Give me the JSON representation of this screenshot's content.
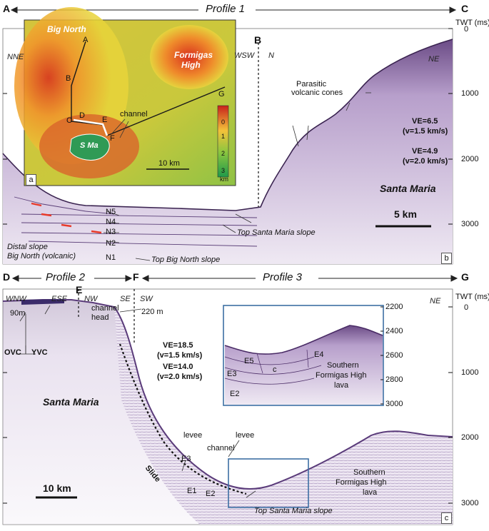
{
  "profiles": {
    "p1": {
      "title": "Profile 1",
      "start": "A",
      "end": "C",
      "mid": "B"
    },
    "p2": {
      "title": "Profile 2",
      "start": "D",
      "end": "F",
      "mid": "E"
    },
    "p3": {
      "title": "Profile 3",
      "start": "F",
      "end": "G"
    }
  },
  "panel_b": {
    "twt_label": "TWT (ms)",
    "twt_ticks": [
      "0",
      "1000",
      "2000",
      "3000"
    ],
    "directions": {
      "left": "NNE",
      "wsw": "WSW",
      "n": "N",
      "ne": "NE"
    },
    "ve": [
      "VE=6.5",
      "(v=1.5 km/s)",
      "VE=4.9",
      "(v=2.0 km/s)"
    ],
    "island": "Santa Maria",
    "scale": "5 km",
    "horizons": [
      "N5",
      "N4",
      "N3",
      "N2",
      "N1"
    ],
    "annotations": {
      "parasitic": "Parasitic",
      "cones": "volcanic cones",
      "top_sm": "Top Santa Maria slope",
      "top_bn": "Top Big North slope",
      "distal1": "Distal slope",
      "distal2": "Big North (volcanic)"
    },
    "label": "b"
  },
  "panel_a": {
    "label": "a",
    "big_north": "Big North",
    "formigas1": "Formigas",
    "formigas2": "High",
    "s_ma": "S Ma",
    "channel": "channel",
    "scale": "10 km",
    "points": [
      "A",
      "B",
      "C",
      "D",
      "E",
      "F",
      "G"
    ],
    "legend_ticks": [
      "0",
      "1",
      "2",
      "3",
      "km"
    ]
  },
  "panel_c": {
    "twt_label": "TWT (ms)",
    "twt_ticks": [
      "0",
      "1000",
      "2000",
      "3000"
    ],
    "directions": {
      "wnw": "WNW",
      "ese": "ESE",
      "nw": "NW",
      "se": "SE",
      "sw": "SW",
      "ne": "NE"
    },
    "ve": [
      "VE=18.5",
      "(v=1.5 km/s)",
      "VE=14.0",
      "(v=2.0 km/s)"
    ],
    "island": "Santa Maria",
    "scale": "10 km",
    "depth90": "90m",
    "depth220": "220 m",
    "channel_head1": "channel",
    "channel_head2": "head",
    "ovc": "OVC",
    "yvc": "YVC",
    "levee1": "levee",
    "levee2": "levee",
    "channel": "channel",
    "slide": "Slide",
    "units": [
      "E3",
      "E1",
      "E2"
    ],
    "sfhl1": "Southern",
    "sfhl2": "Formigas High",
    "sfhl3": "lava",
    "top_sm": "Top Santa Maria slope",
    "label": "c",
    "inset": {
      "ticks": [
        "2200",
        "2400",
        "2600",
        "2800",
        "3000"
      ],
      "units": [
        "E5",
        "E4",
        "E3",
        "c",
        "E2"
      ],
      "sfhl1": "Southern",
      "sfhl2": "Formigas High",
      "sfhl3": "lava"
    }
  }
}
